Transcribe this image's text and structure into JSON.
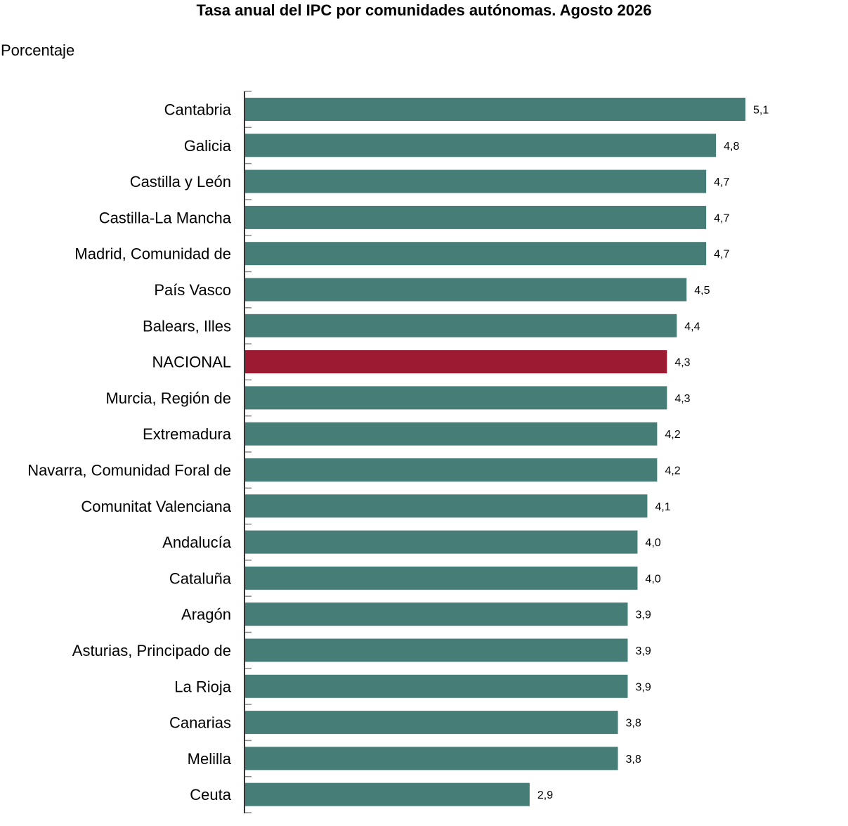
{
  "chart_data": {
    "type": "bar",
    "orientation": "horizontal",
    "title": "Tasa anual del IPC por comunidades autónomas. Agosto 2026",
    "subtitle": "Porcentaje",
    "xlabel": "",
    "ylabel": "",
    "xlim": [
      0,
      5.1
    ],
    "grid": false,
    "legend": "none",
    "colors": {
      "default": "#477d77",
      "highlight": "#9c1a32"
    },
    "highlight": "NACIONAL",
    "categories": [
      "Cantabria",
      "Galicia",
      "Castilla y León",
      "Castilla-La Mancha",
      "Madrid, Comunidad de",
      "País Vasco",
      "Balears, Illes",
      "NACIONAL",
      "Murcia, Región de",
      "Extremadura",
      "Navarra, Comunidad Foral de",
      "Comunitat Valenciana",
      "Andalucía",
      "Cataluña",
      "Aragón",
      "Asturias, Principado de",
      "La Rioja",
      "Canarias",
      "Melilla",
      "Ceuta"
    ],
    "values": [
      5.1,
      4.8,
      4.7,
      4.7,
      4.7,
      4.5,
      4.4,
      4.3,
      4.3,
      4.2,
      4.2,
      4.1,
      4.0,
      4.0,
      3.9,
      3.9,
      3.9,
      3.8,
      3.8,
      2.9
    ],
    "value_labels": [
      "5,1",
      "4,8",
      "4,7",
      "4,7",
      "4,7",
      "4,5",
      "4,4",
      "4,3",
      "4,3",
      "4,2",
      "4,2",
      "4,1",
      "4,0",
      "4,0",
      "3,9",
      "3,9",
      "3,9",
      "3,8",
      "3,8",
      "2,9"
    ]
  }
}
